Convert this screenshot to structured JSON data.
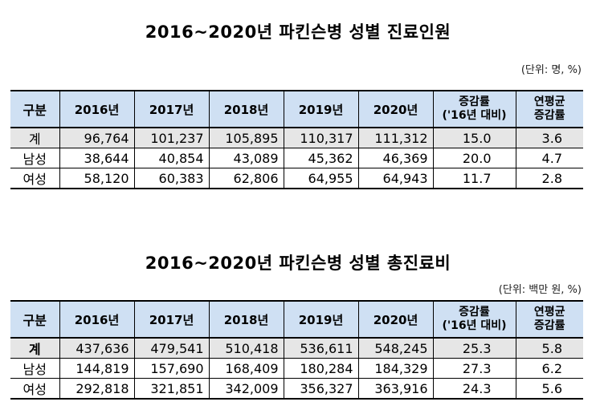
{
  "table1": {
    "title": "2016~2020년  파킨슨병  성별  진료인원",
    "unit": "(단위: 명, %)",
    "headers": [
      "구분",
      "2016년",
      "2017년",
      "2018년",
      "2019년",
      "2020년",
      "증감률",
      "('16년 대비)",
      "연평균",
      "증감률"
    ],
    "rows": [
      [
        "계",
        "96,764",
        "101,237",
        "105,895",
        "110,317",
        "111,312",
        "15.0",
        "3.6"
      ],
      [
        "남성",
        "38,644",
        "40,854",
        "43,089",
        "45,362",
        "46,369",
        "20.0",
        "4.7"
      ],
      [
        "여성",
        "58,120",
        "60,383",
        "62,806",
        "64,955",
        "64,943",
        "11.7",
        "2.8"
      ]
    ]
  },
  "table2": {
    "title": "2016~2020년  파킨슨병  성별  총진료비",
    "unit": "(단위: 백만 원, %)",
    "headers": [
      "구분",
      "2016년",
      "2017년",
      "2018년",
      "2019년",
      "2020년",
      "증감률",
      "('16년 대비)",
      "연평균",
      "증감률"
    ],
    "rows": [
      [
        "계",
        "437,636",
        "479,541",
        "510,418",
        "536,611",
        "548,245",
        "25.3",
        "5.8"
      ],
      [
        "남성",
        "144,819",
        "157,690",
        "168,409",
        "180,284",
        "184,329",
        "27.3",
        "6.2"
      ],
      [
        "여성",
        "292,818",
        "321,851",
        "342,009",
        "356,327",
        "363,916",
        "24.3",
        "5.6"
      ]
    ]
  }
}
